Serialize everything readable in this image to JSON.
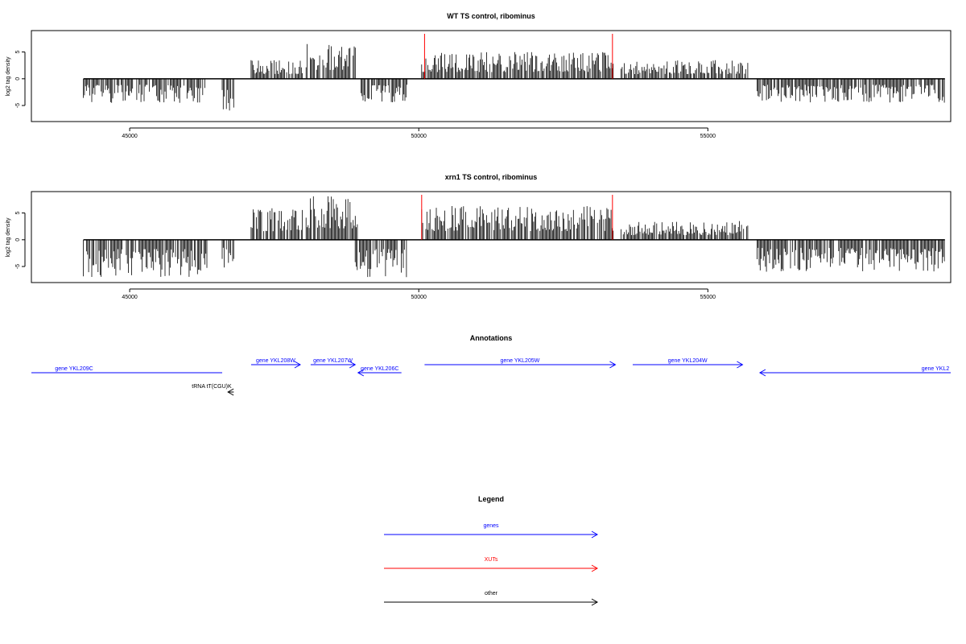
{
  "chart_data": [
    {
      "type": "bar",
      "title": "WT TS control, ribominus",
      "ylabel": "log2 tag density",
      "xlim": [
        43300,
        59200
      ],
      "ylim": [
        -8,
        9
      ],
      "xticks": [
        45000,
        50000,
        55000
      ],
      "yticks": [
        -5,
        0,
        5
      ],
      "xut_markers": [
        50100,
        53350
      ],
      "regions": [
        {
          "start": 44200,
          "end": 46300,
          "strand": "minus",
          "max": 4.5
        },
        {
          "start": 46600,
          "end": 46800,
          "strand": "minus",
          "max": 6.0
        },
        {
          "start": 47100,
          "end": 48000,
          "strand": "plus",
          "max": 3.5
        },
        {
          "start": 48050,
          "end": 48950,
          "strand": "plus",
          "max": 6.5
        },
        {
          "start": 49000,
          "end": 49800,
          "strand": "minus",
          "max": 4.5
        },
        {
          "start": 50050,
          "end": 53380,
          "strand": "plus",
          "max": 5.0
        },
        {
          "start": 53500,
          "end": 55700,
          "strand": "plus",
          "max": 3.5
        },
        {
          "start": 55850,
          "end": 59100,
          "strand": "minus",
          "max": 4.5
        }
      ]
    },
    {
      "type": "bar",
      "title": "xrn1 TS control, ribominus",
      "ylabel": "log2 tag density",
      "xlim": [
        43300,
        59200
      ],
      "ylim": [
        -8,
        9
      ],
      "xticks": [
        45000,
        50000,
        55000
      ],
      "yticks": [
        -5,
        0,
        5
      ],
      "xut_markers": [
        50050,
        53350
      ],
      "regions": [
        {
          "start": 44200,
          "end": 46350,
          "strand": "minus",
          "max": 7.0
        },
        {
          "start": 46600,
          "end": 46800,
          "strand": "minus",
          "max": 6.0
        },
        {
          "start": 47100,
          "end": 48000,
          "strand": "plus",
          "max": 6.0
        },
        {
          "start": 48050,
          "end": 48950,
          "strand": "plus",
          "max": 8.5
        },
        {
          "start": 48900,
          "end": 49800,
          "strand": "minus",
          "max": 7.0
        },
        {
          "start": 50050,
          "end": 53380,
          "strand": "plus",
          "max": 6.5
        },
        {
          "start": 53500,
          "end": 55700,
          "strand": "plus",
          "max": 3.5
        },
        {
          "start": 55850,
          "end": 59100,
          "strand": "minus",
          "max": 6.0
        }
      ]
    }
  ],
  "annotations": {
    "title": "Annotations",
    "features": [
      {
        "label": "gene YKL209C",
        "start": 43300,
        "end": 46600,
        "strand": "minus",
        "type": "gene"
      },
      {
        "label": "tRNA tT(CGU)K",
        "start": 46700,
        "end": 46800,
        "strand": "minus",
        "type": "other"
      },
      {
        "label": "gene YKL208W",
        "start": 47100,
        "end": 47950,
        "strand": "plus",
        "type": "gene"
      },
      {
        "label": "gene YKL207W",
        "start": 48130,
        "end": 48900,
        "strand": "plus",
        "type": "gene"
      },
      {
        "label": "gene YKL206C",
        "start": 48950,
        "end": 49700,
        "strand": "minus",
        "type": "gene"
      },
      {
        "label": "gene YKL205W",
        "start": 50100,
        "end": 53400,
        "strand": "plus",
        "type": "gene"
      },
      {
        "label": "gene YKL204W",
        "start": 53700,
        "end": 55600,
        "strand": "plus",
        "type": "gene"
      },
      {
        "label": "gene YKL2",
        "start": 55900,
        "end": 59200,
        "strand": "minus",
        "type": "gene"
      }
    ]
  },
  "legend": {
    "title": "Legend",
    "items": [
      {
        "label": "genes",
        "color": "#0000ff"
      },
      {
        "label": "XUTs",
        "color": "#ff0000"
      },
      {
        "label": "other",
        "color": "#000000"
      }
    ]
  },
  "colors": {
    "gene": "#0000ff",
    "xut": "#ff0000",
    "other": "#000000",
    "signal": "#000000"
  }
}
